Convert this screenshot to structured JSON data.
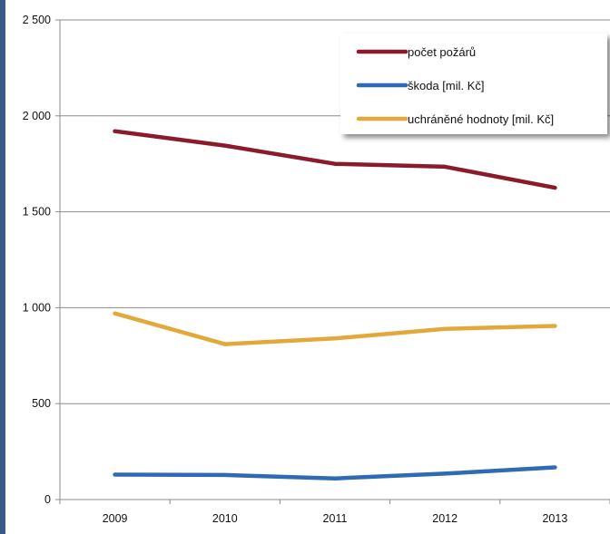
{
  "chart_data": {
    "type": "line",
    "title": "",
    "xlabel": "",
    "ylabel": "",
    "x": [
      "2009",
      "2010",
      "2011",
      "2012",
      "2013"
    ],
    "ylim": [
      0,
      2500
    ],
    "yticks": [
      "0",
      "500",
      "1 000",
      "1 500",
      "2 000",
      "2 500"
    ],
    "grid": "horizontal",
    "legend_position": "top-right",
    "series": [
      {
        "name": "počet požárů",
        "color": "#8b1a2b",
        "values": [
          1920,
          1845,
          1750,
          1735,
          1625
        ]
      },
      {
        "name": "škoda [mil. Kč]",
        "color": "#2f6bb5",
        "values": [
          130,
          128,
          110,
          135,
          168
        ]
      },
      {
        "name": "uchráněné hodnoty [mil. Kč]",
        "color": "#e3a83a",
        "values": [
          970,
          810,
          840,
          890,
          905
        ]
      }
    ]
  }
}
